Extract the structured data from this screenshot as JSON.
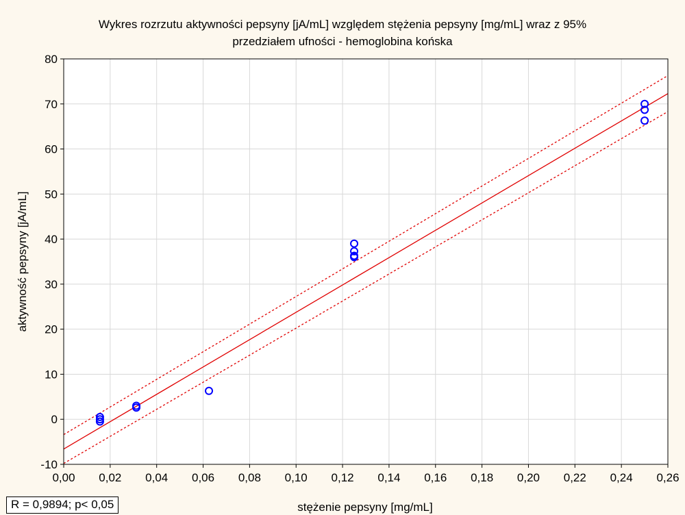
{
  "chart_data": {
    "type": "scatter",
    "title": [
      "Wykres rozrzutu aktywności pepsyny [jA/mL] względem stężenia pepsyny [mg/mL] wraz z 95%",
      "przedziałem ufności - hemoglobina końska"
    ],
    "xlabel": "stężenie pepsyny [mg/mL]",
    "ylabel": "aktywność pepsyny [jA/mL]",
    "xlim": [
      0,
      0.26
    ],
    "ylim": [
      -10,
      80
    ],
    "x_ticks": [
      0,
      0.02,
      0.04,
      0.06,
      0.08,
      0.1,
      0.12,
      0.14,
      0.16,
      0.18,
      0.2,
      0.22,
      0.24,
      0.26
    ],
    "x_tick_labels": [
      "0,00",
      "0,02",
      "0,04",
      "0,06",
      "0,08",
      "0,10",
      "0,12",
      "0,14",
      "0,16",
      "0,18",
      "0,20",
      "0,22",
      "0,24",
      "0,26"
    ],
    "y_ticks": [
      -10,
      0,
      10,
      20,
      30,
      40,
      50,
      60,
      70,
      80
    ],
    "y_tick_labels": [
      "-10",
      "0",
      "10",
      "20",
      "30",
      "40",
      "50",
      "60",
      "70",
      "80"
    ],
    "grid": true,
    "points": [
      {
        "x": 0.0156,
        "y": 0.5
      },
      {
        "x": 0.0156,
        "y": 0.0
      },
      {
        "x": 0.0156,
        "y": -0.5
      },
      {
        "x": 0.03125,
        "y": 3.0
      },
      {
        "x": 0.03125,
        "y": 2.6
      },
      {
        "x": 0.0625,
        "y": 6.3
      },
      {
        "x": 0.125,
        "y": 39.0
      },
      {
        "x": 0.125,
        "y": 37.3
      },
      {
        "x": 0.125,
        "y": 36.3
      },
      {
        "x": 0.125,
        "y": 36.0
      },
      {
        "x": 0.25,
        "y": 70.0
      },
      {
        "x": 0.25,
        "y": 68.7
      },
      {
        "x": 0.25,
        "y": 66.3
      }
    ],
    "regression": {
      "x": [
        0,
        0.26
      ],
      "y": [
        -6.6,
        72.3
      ]
    },
    "ci_upper": {
      "x": [
        0,
        0.26
      ],
      "y": [
        -3.4,
        76.3
      ]
    },
    "ci_lower": {
      "x": [
        0,
        0.26
      ],
      "y": [
        -9.8,
        68.3
      ]
    },
    "annotation": "R = 0,9894; p< 0,05",
    "colors": {
      "points": "#0000ff",
      "regression": "#e00000",
      "ci": "#e00000",
      "grid": "#d8d8d8",
      "plot_bg": "#ffffff",
      "page_bg": "#fdf8ee"
    }
  }
}
